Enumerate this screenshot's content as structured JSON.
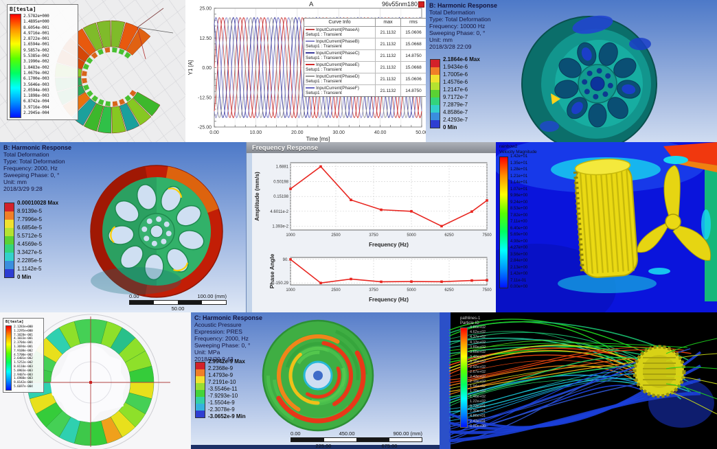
{
  "colors": {
    "ansys_bands_9": [
      "#d3212a",
      "#f07f28",
      "#f0e12e",
      "#b5e230",
      "#5ad134",
      "#33d47c",
      "#33d0cc",
      "#3a8ede",
      "#2e3ed2"
    ],
    "ansys_bands_8": [
      "#d3212a",
      "#f07f28",
      "#f0e12e",
      "#98dd31",
      "#44d43a",
      "#33d0a6",
      "#35b2de",
      "#2e3ed2"
    ],
    "rainbow_stops": [
      "#ff0000",
      "#ff9000",
      "#fdff00",
      "#58ff00",
      "#00ff62",
      "#00ffff",
      "#0090ff",
      "#0010ff"
    ],
    "curve_red": "#e8251f",
    "fluent_blue": "#0a14dc"
  },
  "panels": {
    "maxwell_top": {
      "legend_title": "B[tesla]",
      "legend_values": [
        "2.5782e+000",
        "1.4895e+000",
        "8.6054e-001",
        "4.9716e-001",
        "2.8722e-001",
        "1.6594e-001",
        "9.5857e-002",
        "5.5385e-002",
        "3.1990e-002",
        "1.8483e-002",
        "1.0679e-002",
        "6.1700e-003",
        "3.5646e-003",
        "2.0594e-003",
        "1.1898e-003",
        "6.8742e-004",
        "3.9716e-004",
        "2.2945e-004"
      ]
    },
    "harmonic_top": {
      "info_lines": [
        "B: Harmonic Response",
        "Total Deformation",
        "Type: Total Deformation",
        "Frequency: 10000 Hz",
        "Sweeping Phase: 0, °",
        "Unit: mm",
        "2018/3/28 22:09"
      ],
      "legend": [
        "2.1864e-6 Max",
        "1.9434e-6",
        "1.7005e-6",
        "1.4576e-6",
        "1.2147e-6",
        "9.7172e-7",
        "7.2879e-7",
        "4.8586e-7",
        "2.4293e-7",
        "0 Min"
      ]
    },
    "harmonic_mid": {
      "info_lines": [
        "B: Harmonic Response",
        "Total Deformation",
        "Type: Total Deformation",
        "Frequency: 2000, Hz",
        "Sweeping Phase: 0, °",
        "Unit: mm",
        "2018/3/29 9:28"
      ],
      "legend": [
        "0.00010028 Max",
        "8.9139e-5",
        "7.7996e-5",
        "6.6854e-5",
        "5.5712e-5",
        "4.4569e-5",
        "3.3427e-5",
        "2.2285e-5",
        "1.1142e-5",
        "0 Min"
      ],
      "ruler_top": [
        "0.00",
        "100.00 (mm)"
      ],
      "ruler_bottom": [
        "50.00"
      ]
    },
    "freq_response": {
      "window_title": "Frequency Response"
    },
    "cfd_velocity": {
      "legend_title_lines": [
        "rainbow2",
        "Velocity Magnitude"
      ],
      "legend_values": [
        "1.42e+01",
        "1.35e+01",
        "1.28e+01",
        "1.21e+01",
        "1.14e+01",
        "1.07e+01",
        "9.96e+00",
        "9.24e+00",
        "8.53e+00",
        "7.82e+00",
        "7.11e+00",
        "6.40e+00",
        "5.69e+00",
        "4.98e+00",
        "4.27e+00",
        "3.56e+00",
        "2.84e+00",
        "2.13e+00",
        "1.42e+00",
        "7.11e-01",
        "0.00e+00"
      ]
    },
    "maxwell_bottom": {
      "legend_title": "B[tesla]",
      "legend_values": [
        "2.1283e+000",
        "1.2295e+000",
        "7.1028e-001",
        "4.1033e-001",
        "2.3704e-001",
        "1.3694e-001",
        "7.9108e-002",
        "4.5700e-002",
        "2.6401e-002",
        "1.5252e-002",
        "8.8110e-003",
        "5.0903e-003",
        "2.9407e-003",
        "1.6988e-003",
        "9.8142e-004",
        "5.6697e-004"
      ]
    },
    "acoustic": {
      "info_lines": [
        "C: Harmonic Response",
        "Acoustic Pressure",
        "Expression: PRES",
        "Frequency: 2000, Hz",
        "Sweeping Phase: 0, °",
        "Unit: MPa",
        "2018/3/29 9:43"
      ],
      "legend": [
        "2.9942e-9 Max",
        "2.2368e-9",
        "1.4793e-9",
        "7.2191e-10",
        "-3.5546e-11",
        "-7.9293e-10",
        "-1.5504e-9",
        "-2.3078e-9",
        "-3.0652e-9 Min"
      ],
      "ruler_top": [
        "0.00",
        "450.00",
        "900.00 (mm)"
      ],
      "ruler_bottom": [
        "225.00",
        "675.00"
      ]
    },
    "pathlines": {
      "legend_title_lines": [
        "pathlines-1",
        "Particle ID"
      ],
      "legend_values": [
        "4.86e+02",
        "4.62e+02",
        "4.37e+02",
        "4.13e+02",
        "3.89e+02",
        "3.65e+02",
        "3.40e+02",
        "3.16e+02",
        "2.92e+02",
        "2.67e+02",
        "2.43e+02",
        "2.19e+02",
        "1.94e+02",
        "1.70e+02",
        "1.46e+02",
        "1.22e+02",
        "9.73e+01",
        "7.30e+01",
        "4.86e+01",
        "2.43e+01",
        "0.00e+00"
      ]
    }
  },
  "chart_data": [
    {
      "type": "line",
      "title": "A",
      "corner_label": "96v55nm180",
      "xlabel": "Time [ms]",
      "ylabel": "Y1 [A]",
      "xlim": [
        0,
        50
      ],
      "ylim": [
        -25,
        25
      ],
      "xticks": [
        "0.00",
        "10.00",
        "20.00",
        "30.00",
        "40.00",
        "50.00"
      ],
      "yticks": [
        "25.00",
        "12.50",
        "0.00",
        "-12.50",
        "-25.00"
      ],
      "waveform": {
        "amplitude": 21.1132,
        "period_ms": 5,
        "x_range_ms": [
          0,
          50
        ],
        "phases_deg": [
          0,
          -120,
          -240,
          -60,
          -180,
          -300
        ]
      },
      "table_headers": [
        "Curve Info",
        "max",
        "rms"
      ],
      "series": [
        {
          "name": "InputCurrent(PhaseA)",
          "setup": "Setup1 : Transient",
          "max": "21.1132",
          "rms": "15.0606",
          "color": "#c24848"
        },
        {
          "name": "InputCurrent(PhaseB)",
          "setup": "Setup1 : Transient",
          "max": "21.1132",
          "rms": "15.0668",
          "color": "#8888c8"
        },
        {
          "name": "InputCurrent(PhaseC)",
          "setup": "Setup1 : Transient",
          "max": "21.1132",
          "rms": "14.8750",
          "color": "#3a3a9a"
        },
        {
          "name": "InputCurrent(PhaseE)",
          "setup": "Setup1 : Transient",
          "max": "21.1132",
          "rms": "15.0668",
          "color": "#d02828"
        },
        {
          "name": "InputCurrent(PhaseD)",
          "setup": "Setup1 : Transient",
          "max": "21.1132",
          "rms": "15.0606",
          "color": "#9a9a9a"
        },
        {
          "name": "InputCurrent(PhaseF)",
          "setup": "Setup1 : Transient",
          "max": "21.1132",
          "rms": "14.8750",
          "color": "#6868c0"
        }
      ]
    },
    {
      "type": "line",
      "panel": "amplitude",
      "ylabel": "Amplitude (mm/s)",
      "xlabel": "Frequency (Hz)",
      "yscale": "log",
      "x": [
        1000,
        2000,
        3000,
        4000,
        5000,
        6000,
        7000,
        7500
      ],
      "y": [
        0.28,
        1.6881,
        0.115,
        0.052,
        0.046,
        0.0139,
        0.045,
        0.11
      ],
      "yticks": [
        1.6881,
        0.50198,
        0.15198,
        0.046011,
        0.01393
      ],
      "ytick_labels": [
        "1.6881",
        "0.50198",
        "0.15198",
        "4.6011e-2",
        "1.393e-2"
      ],
      "xticks": [
        1000,
        2500,
        3750,
        5000,
        6250,
        7500
      ],
      "xtick_labels": [
        "1000",
        "2500",
        "3750",
        "5000",
        "6250",
        "7500"
      ],
      "color": "#e8251f"
    },
    {
      "type": "line",
      "panel": "phase",
      "ylabel": "Phase Angle",
      "xlabel": "Frequency (Hz)",
      "ylim": [
        -170,
        110
      ],
      "x": [
        1000,
        2000,
        3000,
        4000,
        5000,
        6000,
        7000,
        7500
      ],
      "y": [
        90,
        -150.29,
        -110,
        -138,
        -136,
        -137,
        -125,
        -122
      ],
      "yticks": [
        90,
        -150.29
      ],
      "ytick_labels": [
        "90.",
        "-150.29"
      ],
      "xticks": [
        1000,
        2500,
        3750,
        5000,
        6250,
        7500
      ],
      "xtick_labels": [
        "1000",
        "2500",
        "3750",
        "5000",
        "6250",
        "7500"
      ],
      "color": "#e8251f"
    }
  ]
}
